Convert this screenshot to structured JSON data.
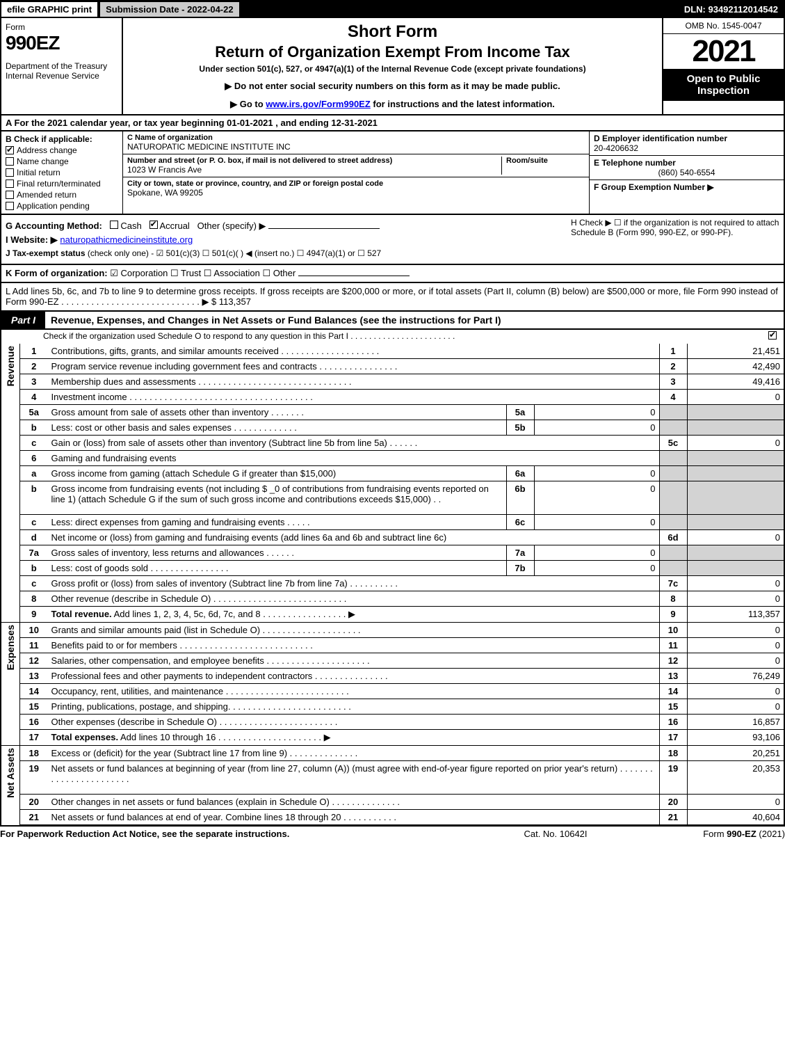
{
  "top_bar": {
    "efile": "efile GRAPHIC print",
    "submission": "Submission Date - 2022-04-22",
    "dln": "DLN: 93492112014542"
  },
  "header": {
    "form_word": "Form",
    "form_number": "990EZ",
    "dept": "Department of the Treasury\nInternal Revenue Service",
    "title1": "Short Form",
    "title2": "Return of Organization Exempt From Income Tax",
    "subtitle": "Under section 501(c), 527, or 4947(a)(1) of the Internal Revenue Code (except private foundations)",
    "instr1": "▶ Do not enter social security numbers on this form as it may be made public.",
    "instr2_pre": "▶ Go to ",
    "instr2_link": "www.irs.gov/Form990EZ",
    "instr2_post": " for instructions and the latest information.",
    "omb": "OMB No. 1545-0047",
    "year": "2021",
    "open": "Open to Public Inspection"
  },
  "line_a": "A  For the 2021 calendar year, or tax year beginning 01-01-2021 , and ending 12-31-2021",
  "section_b": {
    "header": "B  Check if applicable:",
    "items": [
      {
        "label": "Address change",
        "checked": true
      },
      {
        "label": "Name change",
        "checked": false
      },
      {
        "label": "Initial return",
        "checked": false
      },
      {
        "label": "Final return/terminated",
        "checked": false
      },
      {
        "label": "Amended return",
        "checked": false
      },
      {
        "label": "Application pending",
        "checked": false
      }
    ]
  },
  "section_c": {
    "name_label": "C Name of organization",
    "name": "NATUROPATIC MEDICINE INSTITUTE INC",
    "street_label": "Number and street (or P. O. box, if mail is not delivered to street address)",
    "street": "1023 W Francis Ave",
    "room_label": "Room/suite",
    "room": "",
    "city_label": "City or town, state or province, country, and ZIP or foreign postal code",
    "city": "Spokane, WA  99205"
  },
  "section_def": {
    "d_label": "D Employer identification number",
    "d_val": "20-4206632",
    "e_label": "E Telephone number",
    "e_val": "(860) 540-6554",
    "f_label": "F Group Exemption Number   ▶",
    "f_val": ""
  },
  "ghi": {
    "g_label": "G Accounting Method:",
    "g_cash": "Cash",
    "g_accrual": "Accrual",
    "g_other": "Other (specify) ▶",
    "g_accrual_checked": true,
    "h_text": "H  Check ▶  ☐  if the organization is not required to attach Schedule B (Form 990, 990-EZ, or 990-PF).",
    "i_label": "I Website: ▶",
    "i_val": "naturopathicmedicineinstitute.org",
    "j_label": "J Tax-exempt status",
    "j_text": " (check only one) -  ☑ 501(c)(3)  ☐ 501(c)(  ) ◀ (insert no.)  ☐ 4947(a)(1) or  ☐ 527"
  },
  "line_k": {
    "label": "K Form of organization:",
    "opts": "  ☑ Corporation   ☐ Trust   ☐ Association   ☐ Other"
  },
  "line_l": {
    "text": "L Add lines 5b, 6c, and 7b to line 9 to determine gross receipts. If gross receipts are $200,000 or more, or if total assets (Part II, column (B) below) are $500,000 or more, file Form 990 instead of Form 990-EZ  .  .  .  .  .  .  .  .  .  .  .  .  .  .  .  .  .  .  .  .  .  .  .  .  .  .  .  .  ▶ $ ",
    "val": "113,357"
  },
  "part1": {
    "tab": "Part I",
    "title": "Revenue, Expenses, and Changes in Net Assets or Fund Balances (see the instructions for Part I)",
    "sub": "Check if the organization used Schedule O to respond to any question in this Part I .  .  .  .  .  .  .  .  .  .  .  .  .  .  .  .  .  .  .  .  .  .  .",
    "sub_checked": true,
    "sections": {
      "revenue": "Revenue",
      "expenses": "Expenses",
      "netassets": "Net Assets"
    }
  },
  "rows": [
    {
      "sec": "rev",
      "no": "1",
      "desc": "Contributions, gifts, grants, and similar amounts received  .  .  .  .  .  .  .  .  .  .  .  .  .  .  .  .  .  .  .  .",
      "col": "1",
      "val": "21,451"
    },
    {
      "sec": "rev",
      "no": "2",
      "desc": "Program service revenue including government fees and contracts  .  .  .  .  .  .  .  .  .  .  .  .  .  .  .  .",
      "col": "2",
      "val": "42,490"
    },
    {
      "sec": "rev",
      "no": "3",
      "desc": "Membership dues and assessments  .  .  .  .  .  .  .  .  .  .  .  .  .  .  .  .  .  .  .  .  .  .  .  .  .  .  .  .  .  .  .",
      "col": "3",
      "val": "49,416"
    },
    {
      "sec": "rev",
      "no": "4",
      "desc": "Investment income  .  .  .  .  .  .  .  .  .  .  .  .  .  .  .  .  .  .  .  .  .  .  .  .  .  .  .  .  .  .  .  .  .  .  .  .  .",
      "col": "4",
      "val": "0"
    },
    {
      "sec": "rev",
      "no": "5a",
      "desc": "Gross amount from sale of assets other than inventory  .  .  .  .  .  .  .",
      "sub": "5a",
      "subval": "0",
      "shade": true
    },
    {
      "sec": "rev",
      "no": "b",
      "desc": "Less: cost or other basis and sales expenses  .  .  .  .  .  .  .  .  .  .  .  .  .",
      "sub": "5b",
      "subval": "0",
      "shade": true
    },
    {
      "sec": "rev",
      "no": "c",
      "desc": "Gain or (loss) from sale of assets other than inventory (Subtract line 5b from line 5a)  .  .  .  .  .  .",
      "col": "5c",
      "val": "0"
    },
    {
      "sec": "rev",
      "no": "6",
      "desc": "Gaming and fundraising events",
      "shade": true,
      "nocol": true
    },
    {
      "sec": "rev",
      "no": "a",
      "desc": "Gross income from gaming (attach Schedule G if greater than $15,000)",
      "sub": "6a",
      "subval": "0",
      "shade": true
    },
    {
      "sec": "rev",
      "no": "b",
      "desc": "Gross income from fundraising events (not including $ _0             of contributions from fundraising events reported on line 1) (attach Schedule G if the sum of such gross income and contributions exceeds $15,000)   .  .",
      "sub": "6b",
      "subval": "0",
      "shade": true,
      "tall": true
    },
    {
      "sec": "rev",
      "no": "c",
      "desc": "Less: direct expenses from gaming and fundraising events  .  .  .  .  .",
      "sub": "6c",
      "subval": "0",
      "shade": true
    },
    {
      "sec": "rev",
      "no": "d",
      "desc": "Net income or (loss) from gaming and fundraising events (add lines 6a and 6b and subtract line 6c)",
      "col": "6d",
      "val": "0"
    },
    {
      "sec": "rev",
      "no": "7a",
      "desc": "Gross sales of inventory, less returns and allowances  .  .  .  .  .  .",
      "sub": "7a",
      "subval": "0",
      "shade": true
    },
    {
      "sec": "rev",
      "no": "b",
      "desc": "Less: cost of goods sold      .  .  .  .  .  .  .  .  .  .  .  .  .  .  .  .",
      "sub": "7b",
      "subval": "0",
      "shade": true
    },
    {
      "sec": "rev",
      "no": "c",
      "desc": "Gross profit or (loss) from sales of inventory (Subtract line 7b from line 7a)  .  .  .  .  .  .  .  .  .  .",
      "col": "7c",
      "val": "0"
    },
    {
      "sec": "rev",
      "no": "8",
      "desc": "Other revenue (describe in Schedule O)  .  .  .  .  .  .  .  .  .  .  .  .  .  .  .  .  .  .  .  .  .  .  .  .  .  .  .",
      "col": "8",
      "val": "0"
    },
    {
      "sec": "rev",
      "no": "9",
      "desc": "Total revenue. Add lines 1, 2, 3, 4, 5c, 6d, 7c, and 8   .  .  .  .  .  .  .  .  .  .  .  .  .  .  .  .  .           ▶",
      "col": "9",
      "val": "113,357",
      "bold": true
    },
    {
      "sec": "exp",
      "no": "10",
      "desc": "Grants and similar amounts paid (list in Schedule O)  .  .  .  .  .  .  .  .  .  .  .  .  .  .  .  .  .  .  .  .",
      "col": "10",
      "val": "0"
    },
    {
      "sec": "exp",
      "no": "11",
      "desc": "Benefits paid to or for members      .  .  .  .  .  .  .  .  .  .  .  .  .  .  .  .  .  .  .  .  .  .  .  .  .  .  .",
      "col": "11",
      "val": "0"
    },
    {
      "sec": "exp",
      "no": "12",
      "desc": "Salaries, other compensation, and employee benefits .  .  .  .  .  .  .  .  .  .  .  .  .  .  .  .  .  .  .  .  .",
      "col": "12",
      "val": "0"
    },
    {
      "sec": "exp",
      "no": "13",
      "desc": "Professional fees and other payments to independent contractors  .  .  .  .  .  .  .  .  .  .  .  .  .  .  .",
      "col": "13",
      "val": "76,249"
    },
    {
      "sec": "exp",
      "no": "14",
      "desc": "Occupancy, rent, utilities, and maintenance .  .  .  .  .  .  .  .  .  .  .  .  .  .  .  .  .  .  .  .  .  .  .  .  .",
      "col": "14",
      "val": "0"
    },
    {
      "sec": "exp",
      "no": "15",
      "desc": "Printing, publications, postage, and shipping.  .  .  .  .  .  .  .  .  .  .  .  .  .  .  .  .  .  .  .  .  .  .  .  .",
      "col": "15",
      "val": "0"
    },
    {
      "sec": "exp",
      "no": "16",
      "desc": "Other expenses (describe in Schedule O)     .  .  .  .  .  .  .  .  .  .  .  .  .  .  .  .  .  .  .  .  .  .  .  .",
      "col": "16",
      "val": "16,857"
    },
    {
      "sec": "exp",
      "no": "17",
      "desc": "Total expenses. Add lines 10 through 16     .  .  .  .  .  .  .  .  .  .  .  .  .  .  .  .  .  .  .  .  .        ▶",
      "col": "17",
      "val": "93,106",
      "bold": true
    },
    {
      "sec": "net",
      "no": "18",
      "desc": "Excess or (deficit) for the year (Subtract line 17 from line 9)       .  .  .  .  .  .  .  .  .  .  .  .  .  .",
      "col": "18",
      "val": "20,251"
    },
    {
      "sec": "net",
      "no": "19",
      "desc": "Net assets or fund balances at beginning of year (from line 27, column (A)) (must agree with end-of-year figure reported on prior year's return) .  .  .  .  .  .  .  .  .  .  .  .  .  .  .  .  .  .  .  .  .  .  .",
      "col": "19",
      "val": "20,353",
      "tall": true
    },
    {
      "sec": "net",
      "no": "20",
      "desc": "Other changes in net assets or fund balances (explain in Schedule O) .  .  .  .  .  .  .  .  .  .  .  .  .  .",
      "col": "20",
      "val": "0"
    },
    {
      "sec": "net",
      "no": "21",
      "desc": "Net assets or fund balances at end of year. Combine lines 18 through 20  .  .  .  .  .  .  .  .  .  .  .",
      "col": "21",
      "val": "40,604"
    }
  ],
  "footer": {
    "left": "For Paperwork Reduction Act Notice, see the separate instructions.",
    "mid": "Cat. No. 10642I",
    "right_pre": "Form ",
    "right_form": "990-EZ",
    "right_post": " (2021)"
  },
  "colors": {
    "black": "#000000",
    "shade": "#d3d3d3",
    "link": "#0000ee"
  }
}
